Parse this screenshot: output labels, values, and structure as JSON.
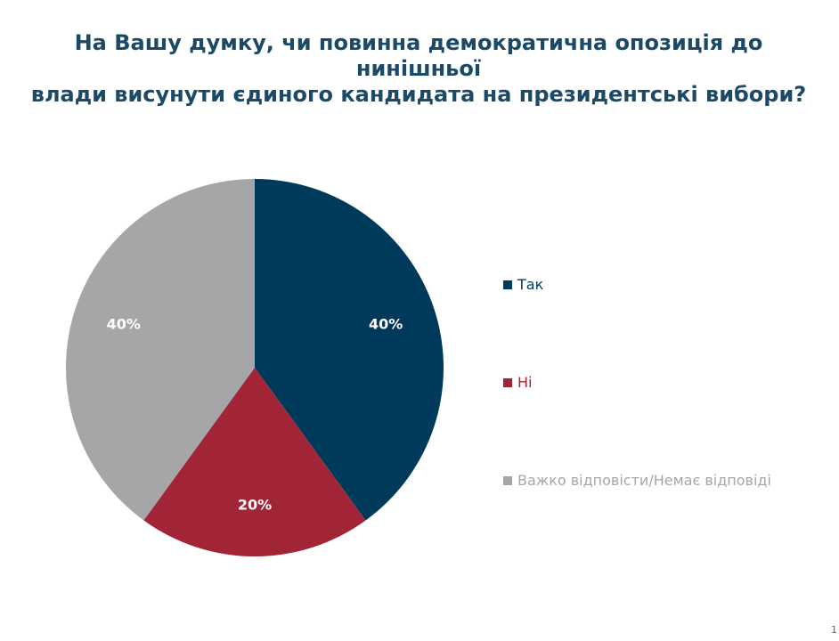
{
  "title_lines": [
    "На Вашу думку, чи повинна демократична опозиція до нинішньої",
    "влади висунути єдиного кандидата на президентські вибори?"
  ],
  "page_number": "1",
  "chart_data": {
    "type": "pie",
    "title": "На Вашу думку, чи повинна демократична опозиція до нинішньої влади висунути єдиного кандидата на президентські вибори?",
    "slices": [
      {
        "name": "Так",
        "value": 40,
        "label": "40%",
        "color": "#003a5a"
      },
      {
        "name": "Ні",
        "value": 20,
        "label": "20%",
        "color": "#a12537"
      },
      {
        "name": "Важко відповісти/Немає відповіді",
        "value": 40,
        "label": "40%",
        "color": "#a6a6a8"
      }
    ],
    "legend": "right"
  }
}
